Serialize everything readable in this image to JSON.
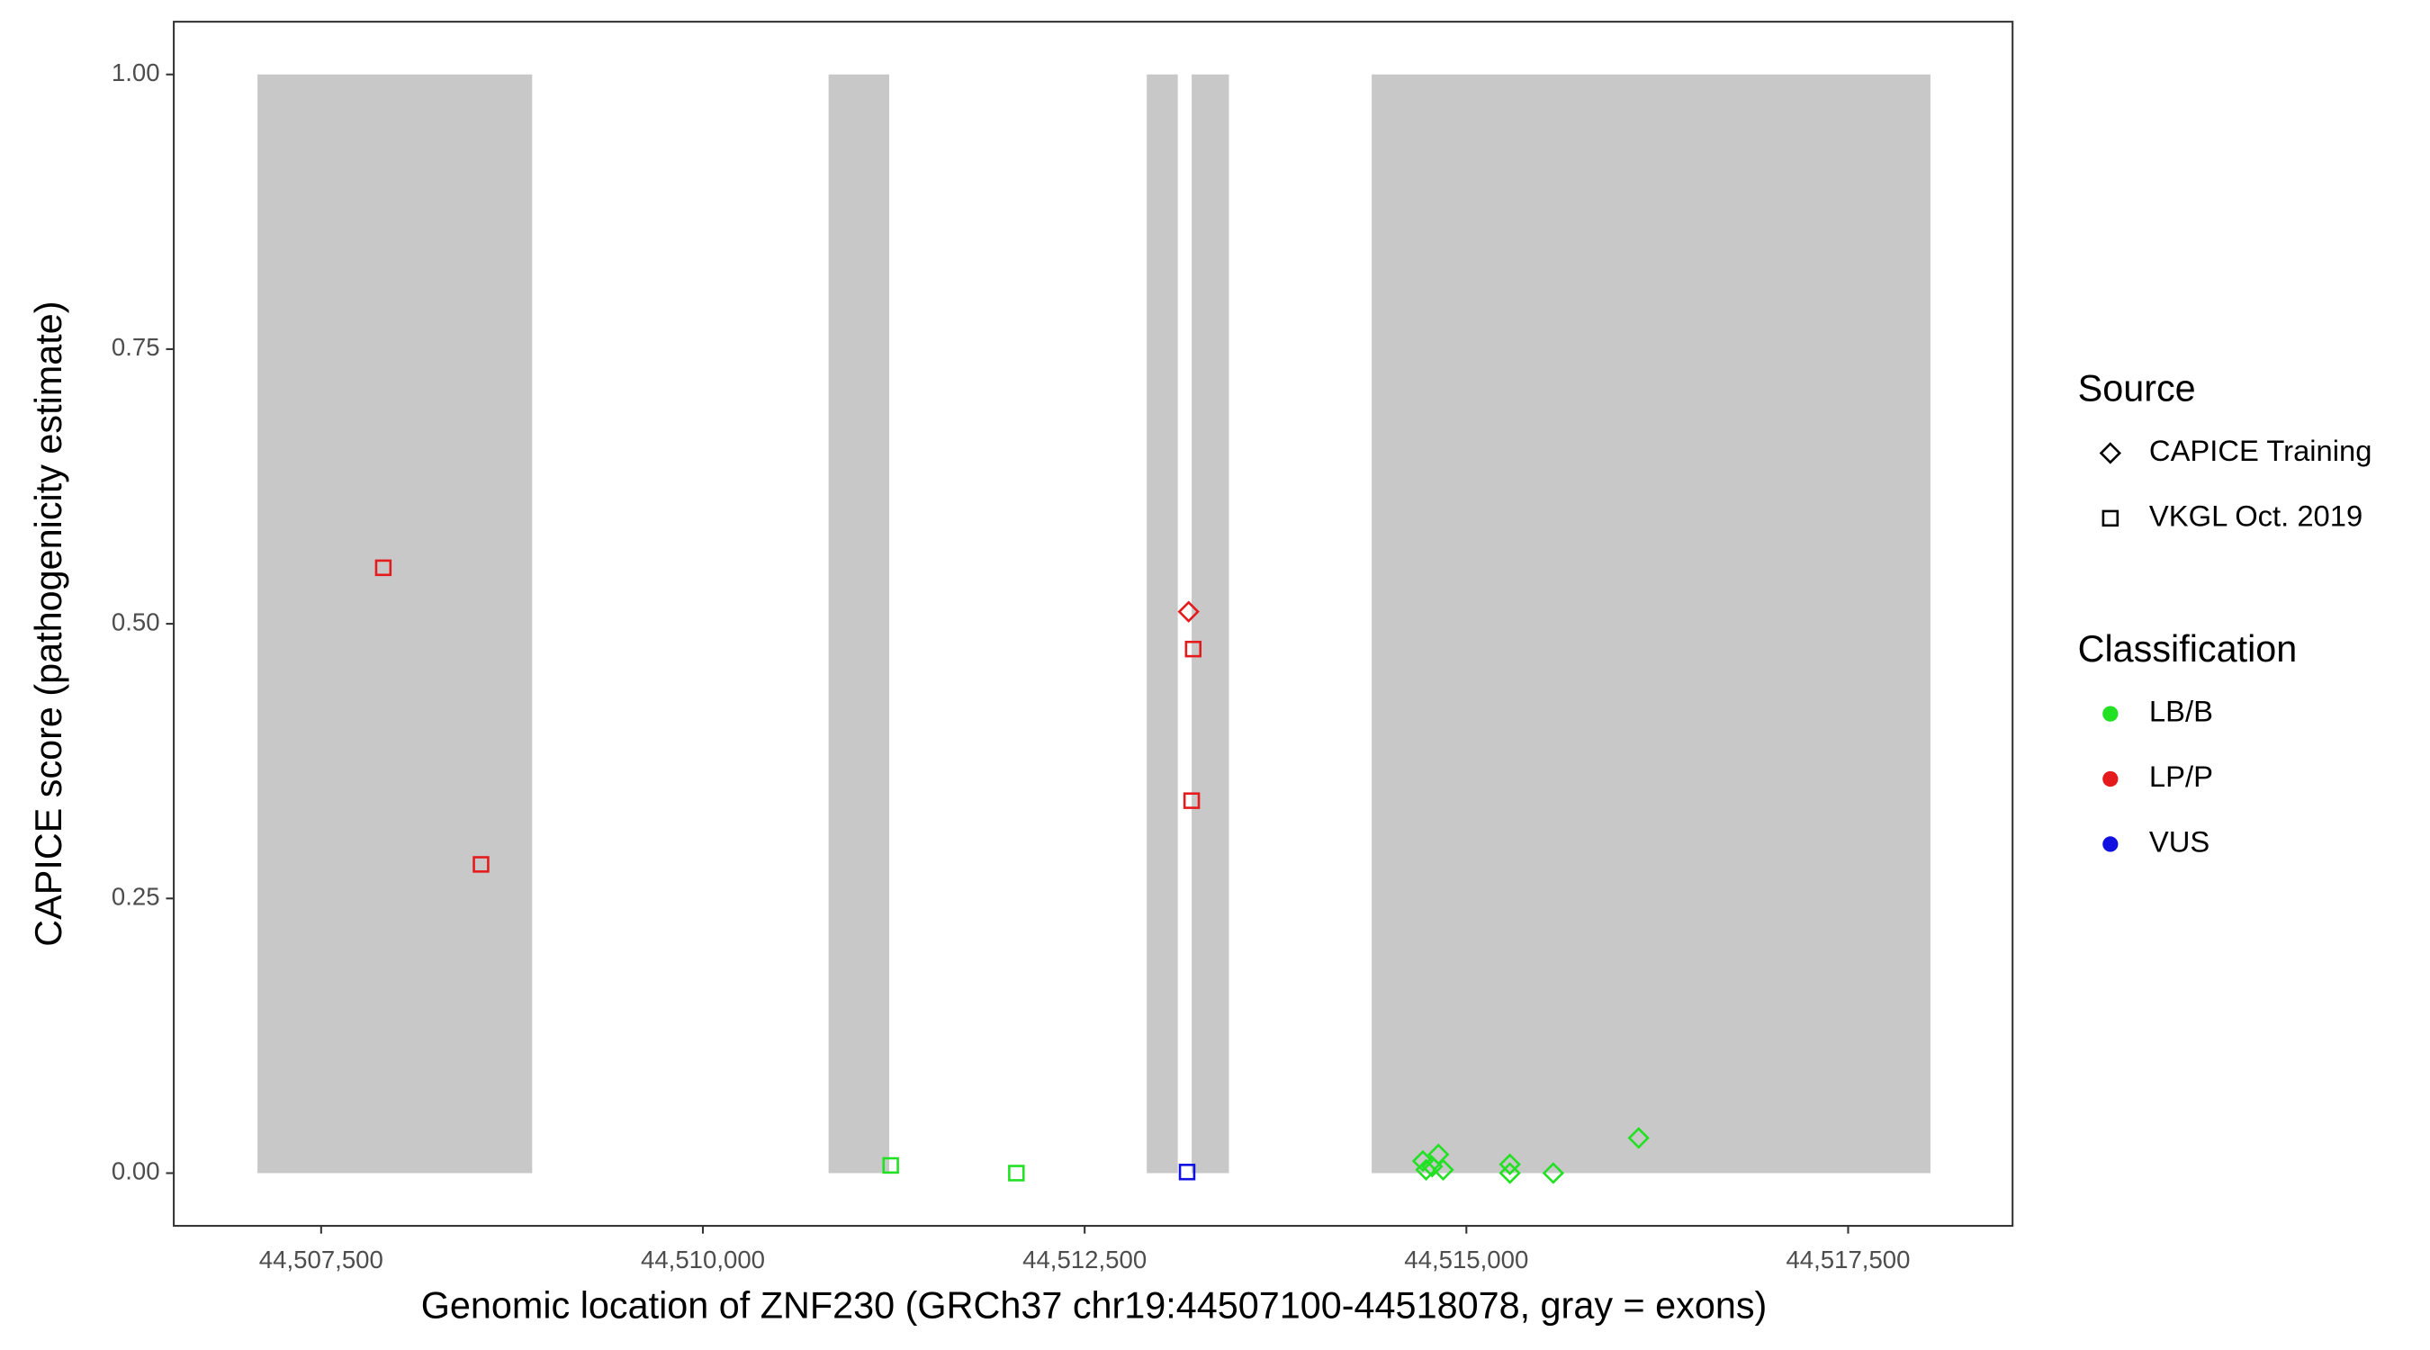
{
  "chart_data": {
    "type": "scatter",
    "x_label": "Genomic location of ZNF230 (GRCh37 chr19:44507100-44518078, gray = exons)",
    "y_label": "CAPICE score (pathogenicity estimate)",
    "xlim": [
      44506535,
      44518577
    ],
    "ylim": [
      -0.048,
      1.048
    ],
    "xticks": [
      {
        "value": 44507500,
        "label": "44,507,500"
      },
      {
        "value": 44510000,
        "label": "44,510,000"
      },
      {
        "value": 44512500,
        "label": "44,512,500"
      },
      {
        "value": 44515000,
        "label": "44,515,000"
      },
      {
        "value": 44517500,
        "label": "44,517,500"
      }
    ],
    "yticks": [
      {
        "value": 0,
        "label": "0.00"
      },
      {
        "value": 0.25,
        "label": "0.25"
      },
      {
        "value": 0.5,
        "label": "0.50"
      },
      {
        "value": 0.75,
        "label": "0.75"
      },
      {
        "value": 1,
        "label": "1.00"
      }
    ],
    "exon_color": "#c8c8c8",
    "exon_ylim": [
      0,
      1
    ],
    "exons": [
      [
        44507083,
        44508882
      ],
      [
        44510823,
        44511220
      ],
      [
        44512907,
        44513110
      ],
      [
        44513201,
        44513445
      ],
      [
        44514380,
        44518039
      ]
    ],
    "source_legend": {
      "title": "Source",
      "entries": [
        {
          "name": "CAPICE Training",
          "shape": "diamond"
        },
        {
          "name": "VKGL Oct. 2019",
          "shape": "square"
        }
      ]
    },
    "series": [
      {
        "name": "LB/B",
        "color": "#22e022",
        "x": [
          44511230,
          44512053,
          44514715,
          44514736,
          44514776,
          44514817,
          44514848,
          44515285,
          44515285,
          44515569,
          44516128
        ],
        "values": [
          0.007,
          0.0,
          0.011,
          0.003,
          0.006,
          0.017,
          0.003,
          0.008,
          0.0,
          0.0,
          0.032
        ],
        "shapes": [
          "square",
          "square",
          "diamond",
          "diamond",
          "diamond",
          "diamond",
          "diamond",
          "diamond",
          "diamond",
          "diamond",
          "diamond"
        ]
      },
      {
        "name": "LP/P",
        "color": "#e41a1c",
        "x": [
          44507907,
          44508547,
          44513211,
          44513201,
          44513181
        ],
        "values": [
          0.551,
          0.281,
          0.477,
          0.339,
          0.511
        ],
        "shapes": [
          "square",
          "square",
          "square",
          "square",
          "diamond"
        ]
      },
      {
        "name": "VUS",
        "color": "#1010e0",
        "x": [
          44513171
        ],
        "values": [
          0.001
        ],
        "shapes": [
          "square"
        ]
      }
    ],
    "classification_legend_title": "Classification"
  }
}
